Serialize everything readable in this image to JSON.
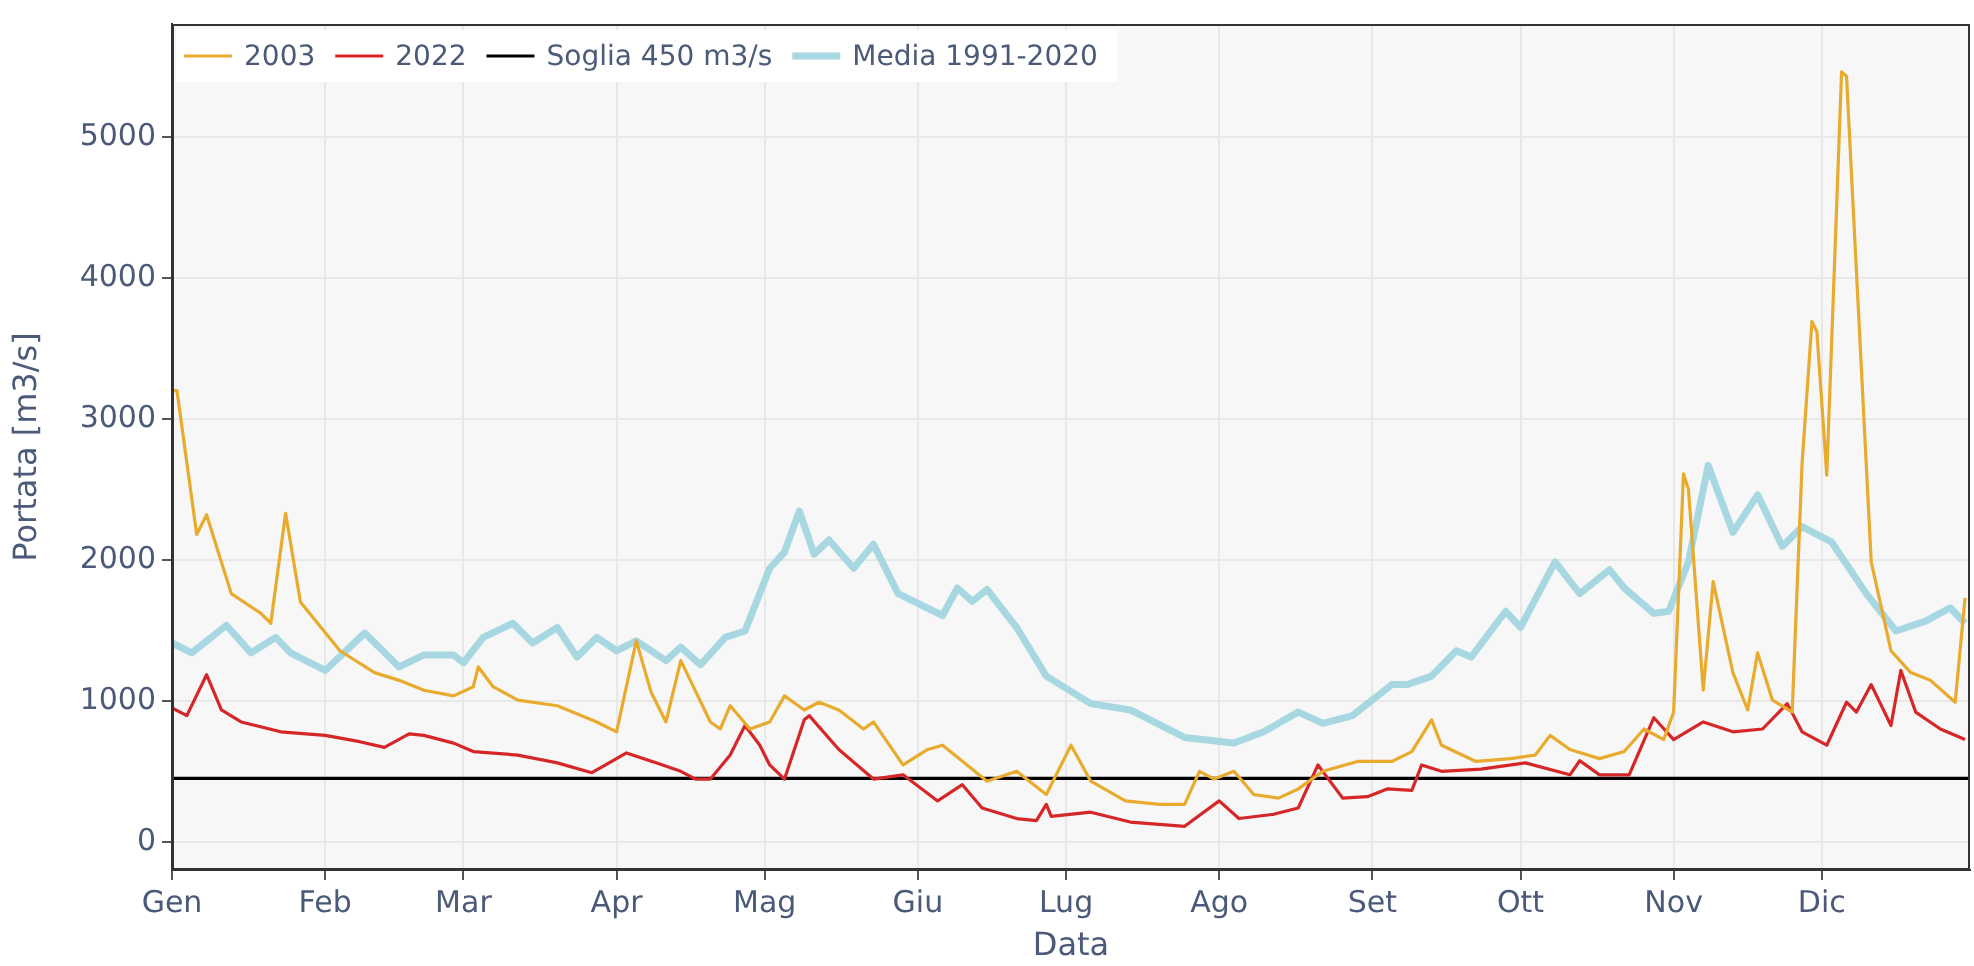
{
  "chart_data": {
    "type": "line",
    "xlabel": "Data",
    "ylabel": "Portata [m3/s]",
    "xlim": [
      "--01-01",
      "--12-31"
    ],
    "xticks": [
      {
        "value": "--01-01",
        "label": "Gen"
      },
      {
        "value": "--02-01",
        "label": "Feb"
      },
      {
        "value": "--03-01",
        "label": "Mar"
      },
      {
        "value": "--04-01",
        "label": "Apr"
      },
      {
        "value": "--05-01",
        "label": "Mag"
      },
      {
        "value": "--06-01",
        "label": "Giu"
      },
      {
        "value": "--07-01",
        "label": "Lug"
      },
      {
        "value": "--08-01",
        "label": "Ago"
      },
      {
        "value": "--09-01",
        "label": "Set"
      },
      {
        "value": "--10-01",
        "label": "Ott"
      },
      {
        "value": "--11-01",
        "label": "Nov"
      },
      {
        "value": "--12-01",
        "label": "Dic"
      }
    ],
    "ylim": [
      -200,
      5800
    ],
    "yticks": [
      0,
      1000,
      2000,
      3000,
      4000,
      5000
    ],
    "grid": true,
    "legend": "top left",
    "marker": "none",
    "line_style": "solid",
    "series": [
      {
        "name": "2003",
        "color": "#e8ab2e",
        "x": [
          "--01-01",
          "--01-02",
          "--01-06",
          "--01-08",
          "--01-13",
          "--01-19",
          "--01-21",
          "--01-24",
          "--01-27",
          "--02-04",
          "--02-11",
          "--02-16",
          "--02-21",
          "--02-27",
          "--03-03",
          "--03-04",
          "--03-07",
          "--03-12",
          "--03-20",
          "--03-28",
          "--04-01",
          "--04-05",
          "--04-08",
          "--04-11",
          "--04-14",
          "--04-20",
          "--04-22",
          "--04-24",
          "--04-28",
          "--05-02",
          "--05-05",
          "--05-09",
          "--05-12",
          "--05-16",
          "--05-21",
          "--05-23",
          "--05-29",
          "--06-03",
          "--06-06",
          "--06-15",
          "--06-21",
          "--06-27",
          "--07-02",
          "--07-06",
          "--07-13",
          "--07-20",
          "--07-25",
          "--07-28",
          "--07-31",
          "--08-04",
          "--08-08",
          "--08-13",
          "--08-17",
          "--08-22",
          "--08-29",
          "--09-05",
          "--09-09",
          "--09-13",
          "--09-15",
          "--09-22",
          "--09-29",
          "--10-04",
          "--10-07",
          "--10-11",
          "--10-17",
          "--10-22",
          "--10-26",
          "--10-30",
          "--11-01",
          "--11-03",
          "--11-04",
          "--11-07",
          "--11-09",
          "--11-13",
          "--11-16",
          "--11-18",
          "--11-21",
          "--11-25",
          "--11-27",
          "--11-29",
          "--11-30",
          "--12-02",
          "--12-05",
          "--12-06",
          "--12-11",
          "--12-15",
          "--12-19",
          "--12-23",
          "--12-28",
          "--12-30"
        ],
        "values": [
          3200,
          3200,
          2180,
          2320,
          1760,
          1620,
          1550,
          2330,
          1700,
          1355,
          1200,
          1145,
          1075,
          1035,
          1100,
          1240,
          1100,
          1005,
          965,
          850,
          780,
          1425,
          1060,
          850,
          1285,
          850,
          800,
          965,
          800,
          850,
          1035,
          935,
          990,
          935,
          800,
          850,
          545,
          655,
          685,
          430,
          500,
          335,
          685,
          430,
          290,
          265,
          265,
          500,
          445,
          500,
          335,
          310,
          375,
          500,
          570,
          570,
          640,
          865,
          685,
          570,
          590,
          615,
          755,
          655,
          590,
          640,
          800,
          725,
          920,
          2610,
          2500,
          1075,
          1845,
          1200,
          935,
          1340,
          1005,
          920,
          2680,
          3690,
          3620,
          2600,
          5460,
          5430,
          1985,
          1355,
          1200,
          1145,
          990,
          1730
        ]
      },
      {
        "name": "2022",
        "color": "#d62728",
        "x": [
          "--01-01",
          "--01-04",
          "--01-08",
          "--01-11",
          "--01-15",
          "--01-23",
          "--02-01",
          "--02-08",
          "--02-13",
          "--02-18",
          "--02-21",
          "--02-27",
          "--03-03",
          "--03-12",
          "--03-20",
          "--03-27",
          "--04-03",
          "--04-09",
          "--04-14",
          "--04-17",
          "--04-20",
          "--04-24",
          "--04-27",
          "--04-30",
          "--05-02",
          "--05-05",
          "--05-09",
          "--05-10",
          "--05-16",
          "--05-23",
          "--05-29",
          "--06-05",
          "--06-10",
          "--06-14",
          "--06-21",
          "--06-25",
          "--06-27",
          "--06-28",
          "--07-06",
          "--07-14",
          "--07-25",
          "--08-01",
          "--08-05",
          "--08-12",
          "--08-17",
          "--08-21",
          "--08-26",
          "--08-31",
          "--09-04",
          "--09-09",
          "--09-11",
          "--09-15",
          "--09-23",
          "--10-02",
          "--10-11",
          "--10-13",
          "--10-17",
          "--10-23",
          "--10-28",
          "--11-01",
          "--11-07",
          "--11-13",
          "--11-19",
          "--11-24",
          "--11-27",
          "--12-02",
          "--12-06",
          "--12-08",
          "--12-11",
          "--12-15",
          "--12-17",
          "--12-20",
          "--12-25",
          "--12-30"
        ],
        "values": [
          950,
          895,
          1185,
          935,
          850,
          780,
          755,
          710,
          670,
          765,
          755,
          700,
          640,
          615,
          560,
          490,
          630,
          560,
          500,
          445,
          445,
          615,
          825,
          685,
          545,
          445,
          865,
          895,
          655,
          445,
          475,
          290,
          405,
          240,
          165,
          150,
          265,
          180,
          210,
          140,
          110,
          290,
          165,
          195,
          240,
          545,
          310,
          320,
          375,
          365,
          545,
          500,
          515,
          560,
          475,
          575,
          475,
          475,
          880,
          725,
          850,
          780,
          800,
          980,
          780,
          685,
          990,
          920,
          1115,
          825,
          1215,
          920,
          800,
          725
        ]
      },
      {
        "name": "Soglia 450 m3/s",
        "color": "#000000",
        "x": [
          "--01-01",
          "--12-31"
        ],
        "values": [
          450,
          450
        ]
      },
      {
        "name": "Media 1991-2020",
        "color": "#a7d7e1",
        "x": [
          "--01-01",
          "--01-05",
          "--01-12",
          "--01-17",
          "--01-22",
          "--01-25",
          "--02-01",
          "--02-09",
          "--02-16",
          "--02-21",
          "--02-27",
          "--03-01",
          "--03-05",
          "--03-11",
          "--03-15",
          "--03-20",
          "--03-24",
          "--03-28",
          "--04-01",
          "--04-05",
          "--04-11",
          "--04-14",
          "--04-18",
          "--04-23",
          "--04-27",
          "--05-02",
          "--05-05",
          "--05-08",
          "--05-11",
          "--05-14",
          "--05-19",
          "--05-23",
          "--05-28",
          "--06-06",
          "--06-09",
          "--06-12",
          "--06-15",
          "--06-21",
          "--06-27",
          "--07-06",
          "--07-14",
          "--07-25",
          "--08-04",
          "--08-10",
          "--08-17",
          "--08-22",
          "--08-28",
          "--09-01",
          "--09-05",
          "--09-08",
          "--09-13",
          "--09-18",
          "--09-21",
          "--09-28",
          "--10-01",
          "--10-08",
          "--10-13",
          "--10-19",
          "--10-22",
          "--10-28",
          "--10-31",
          "--11-04",
          "--11-08",
          "--11-13",
          "--11-18",
          "--11-23",
          "--11-27",
          "--12-03",
          "--12-10",
          "--12-16",
          "--12-22",
          "--12-27",
          "--12-30"
        ],
        "values": [
          1410,
          1340,
          1535,
          1340,
          1450,
          1340,
          1215,
          1480,
          1240,
          1325,
          1325,
          1270,
          1450,
          1550,
          1410,
          1520,
          1310,
          1450,
          1355,
          1425,
          1285,
          1380,
          1255,
          1450,
          1495,
          1940,
          2055,
          2345,
          2040,
          2140,
          1940,
          2110,
          1760,
          1605,
          1800,
          1705,
          1790,
          1520,
          1175,
          980,
          935,
          740,
          700,
          780,
          920,
          840,
          895,
          1005,
          1115,
          1115,
          1175,
          1355,
          1310,
          1635,
          1520,
          1985,
          1760,
          1930,
          1800,
          1620,
          1635,
          1985,
          2670,
          2195,
          2460,
          2095,
          2235,
          2125,
          1760,
          1495,
          1565,
          1660,
          1550
        ]
      }
    ]
  }
}
